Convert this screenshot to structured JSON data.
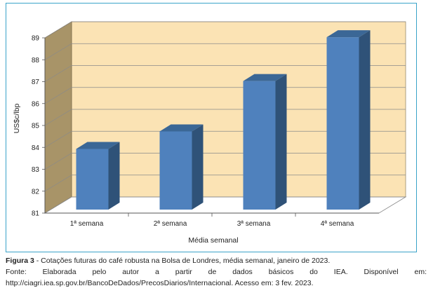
{
  "chart_data": {
    "type": "bar",
    "categories": [
      "1ª semana",
      "2ª semana",
      "3ª semana",
      "4ª semana"
    ],
    "values": [
      83.8,
      84.6,
      86.9,
      88.9
    ],
    "title": "",
    "xlabel": "Média semanal",
    "ylabel": "US$c/lbp",
    "ylim": [
      81,
      89
    ],
    "yticks": [
      "81",
      "82",
      "83",
      "84",
      "85",
      "86",
      "87",
      "88",
      "89"
    ],
    "grid": true,
    "colors": {
      "bar_front": "#4f81bd",
      "bar_side": "#2f5278",
      "bar_top": "#3b6796",
      "back_wall": "#fbe3b4",
      "side_wall": "#a89468",
      "floor": "#ffffff"
    }
  },
  "caption": {
    "figure_label": "Figura 3",
    "figure_text": " - Cotações futuras do café robusta na Bolsa de Londres, média semanal, janeiro de 2023.",
    "source_line": "Fonte: Elaborada pelo autor a partir de dados básicos do IEA. Disponível em: http://ciagri.iea.sp.gov.br/BancoDeDados/PrecosDiarios/Internacional. Acesso em: 3 fev. 2023."
  }
}
